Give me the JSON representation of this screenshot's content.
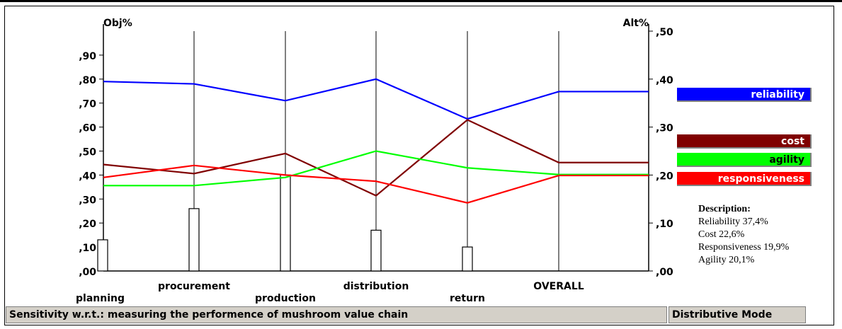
{
  "chart_data": {
    "type": "line",
    "title": "",
    "left_axis_label": "Obj%",
    "right_axis_label": "Alt%",
    "left_ticks": [
      ",00",
      ",10",
      ",20",
      ",30",
      ",40",
      ",50",
      ",60",
      ",70",
      ",80",
      ",90"
    ],
    "right_ticks": [
      ",00",
      ",10",
      ",20",
      ",30",
      ",40",
      ",50"
    ],
    "ylim_left": [
      0,
      1.0
    ],
    "ylim_right": [
      0,
      0.5
    ],
    "categories": [
      "planning",
      "procurement",
      "production",
      "distribution",
      "return",
      "OVERALL"
    ],
    "objective_weights": [
      0.13,
      0.26,
      0.4,
      0.17,
      0.1
    ],
    "series": [
      {
        "name": "reliability",
        "color": "#0000ff",
        "values": [
          0.395,
          0.39,
          0.355,
          0.4,
          0.317,
          0.374
        ]
      },
      {
        "name": "cost",
        "color": "#800000",
        "values": [
          0.222,
          0.203,
          0.245,
          0.157,
          0.315,
          0.226
        ]
      },
      {
        "name": "agility",
        "color": "#00ff00",
        "values": [
          0.178,
          0.178,
          0.195,
          0.25,
          0.215,
          0.201
        ]
      },
      {
        "name": "responsiveness",
        "color": "#ff0000",
        "values": [
          0.195,
          0.22,
          0.2,
          0.187,
          0.142,
          0.199
        ]
      }
    ],
    "grid": false,
    "legend_position": "right"
  },
  "description": {
    "title": "Description:",
    "lines": [
      "Reliability 37,4%",
      "Cost 22,6%",
      "Responsiveness 19,9%",
      "Agility 20,1%"
    ]
  },
  "status_bar": {
    "sensitivity": "Sensitivity w.r.t.: measuring the performence of mushroom value chain",
    "mode": "Distributive Mode"
  }
}
